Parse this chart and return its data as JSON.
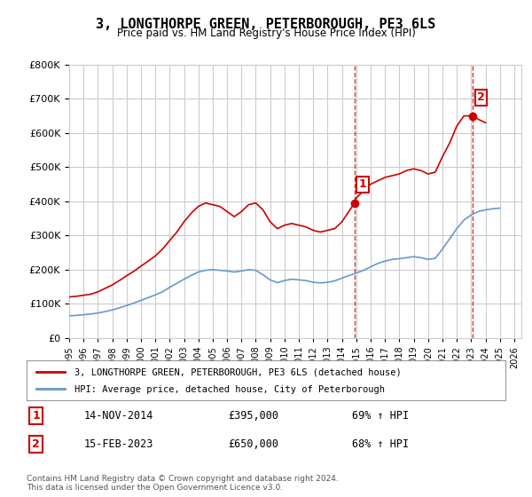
{
  "title": "3, LONGTHORPE GREEN, PETERBOROUGH, PE3 6LS",
  "subtitle": "Price paid vs. HM Land Registry's House Price Index (HPI)",
  "legend_line1": "3, LONGTHORPE GREEN, PETERBOROUGH, PE3 6LS (detached house)",
  "legend_line2": "HPI: Average price, detached house, City of Peterborough",
  "annotation1_label": "1",
  "annotation1_date": "14-NOV-2014",
  "annotation1_price": "£395,000",
  "annotation1_hpi": "69% ↑ HPI",
  "annotation2_label": "2",
  "annotation2_date": "15-FEB-2023",
  "annotation2_price": "£650,000",
  "annotation2_hpi": "68% ↑ HPI",
  "footer": "Contains HM Land Registry data © Crown copyright and database right 2024.\nThis data is licensed under the Open Government Licence v3.0.",
  "red_color": "#cc0000",
  "blue_color": "#6699cc",
  "marker_color": "#cc0000",
  "vline_color": "#cc0000",
  "background_color": "#ffffff",
  "grid_color": "#cccccc",
  "ylim": [
    0,
    800000
  ],
  "xlim_start": 1995.0,
  "xlim_end": 2026.5,
  "point1_x": 2014.88,
  "point1_y": 395000,
  "point2_x": 2023.12,
  "point2_y": 650000,
  "red_x": [
    1995.0,
    1995.5,
    1996.0,
    1996.5,
    1997.0,
    1997.5,
    1998.0,
    1998.5,
    1999.0,
    1999.5,
    2000.0,
    2000.5,
    2001.0,
    2001.5,
    2002.0,
    2002.5,
    2003.0,
    2003.5,
    2004.0,
    2004.5,
    2005.0,
    2005.5,
    2006.0,
    2006.5,
    2007.0,
    2007.5,
    2008.0,
    2008.5,
    2009.0,
    2009.5,
    2010.0,
    2010.5,
    2011.0,
    2011.5,
    2012.0,
    2012.5,
    2013.0,
    2013.5,
    2014.0,
    2014.88,
    2015.0,
    2015.5,
    2016.0,
    2016.5,
    2017.0,
    2017.5,
    2018.0,
    2018.5,
    2019.0,
    2019.5,
    2020.0,
    2020.5,
    2021.0,
    2021.5,
    2022.0,
    2022.5,
    2023.12,
    2023.5,
    2024.0
  ],
  "red_y": [
    120000,
    122000,
    125000,
    128000,
    135000,
    145000,
    155000,
    168000,
    182000,
    195000,
    210000,
    225000,
    240000,
    260000,
    285000,
    310000,
    340000,
    365000,
    385000,
    395000,
    390000,
    385000,
    370000,
    355000,
    370000,
    390000,
    395000,
    375000,
    340000,
    320000,
    330000,
    335000,
    330000,
    325000,
    315000,
    310000,
    315000,
    320000,
    340000,
    395000,
    410000,
    430000,
    450000,
    460000,
    470000,
    475000,
    480000,
    490000,
    495000,
    490000,
    480000,
    485000,
    530000,
    570000,
    620000,
    650000,
    650000,
    640000,
    630000
  ],
  "blue_x": [
    1995.0,
    1995.5,
    1996.0,
    1996.5,
    1997.0,
    1997.5,
    1998.0,
    1998.5,
    1999.0,
    1999.5,
    2000.0,
    2000.5,
    2001.0,
    2001.5,
    2002.0,
    2002.5,
    2003.0,
    2003.5,
    2004.0,
    2004.5,
    2005.0,
    2005.5,
    2006.0,
    2006.5,
    2007.0,
    2007.5,
    2008.0,
    2008.5,
    2009.0,
    2009.5,
    2010.0,
    2010.5,
    2011.0,
    2011.5,
    2012.0,
    2012.5,
    2013.0,
    2013.5,
    2014.0,
    2014.5,
    2015.0,
    2015.5,
    2016.0,
    2016.5,
    2017.0,
    2017.5,
    2018.0,
    2018.5,
    2019.0,
    2019.5,
    2020.0,
    2020.5,
    2021.0,
    2021.5,
    2022.0,
    2022.5,
    2023.0,
    2023.5,
    2024.0,
    2024.5,
    2025.0
  ],
  "blue_y": [
    65000,
    66000,
    68000,
    70000,
    73000,
    77000,
    82000,
    88000,
    95000,
    102000,
    110000,
    118000,
    126000,
    135000,
    148000,
    160000,
    172000,
    183000,
    193000,
    198000,
    200000,
    198000,
    196000,
    193000,
    196000,
    200000,
    198000,
    185000,
    170000,
    162000,
    168000,
    172000,
    170000,
    168000,
    163000,
    161000,
    163000,
    167000,
    175000,
    183000,
    190000,
    198000,
    208000,
    218000,
    225000,
    230000,
    232000,
    235000,
    238000,
    235000,
    230000,
    233000,
    260000,
    290000,
    320000,
    345000,
    360000,
    370000,
    375000,
    378000,
    380000
  ]
}
